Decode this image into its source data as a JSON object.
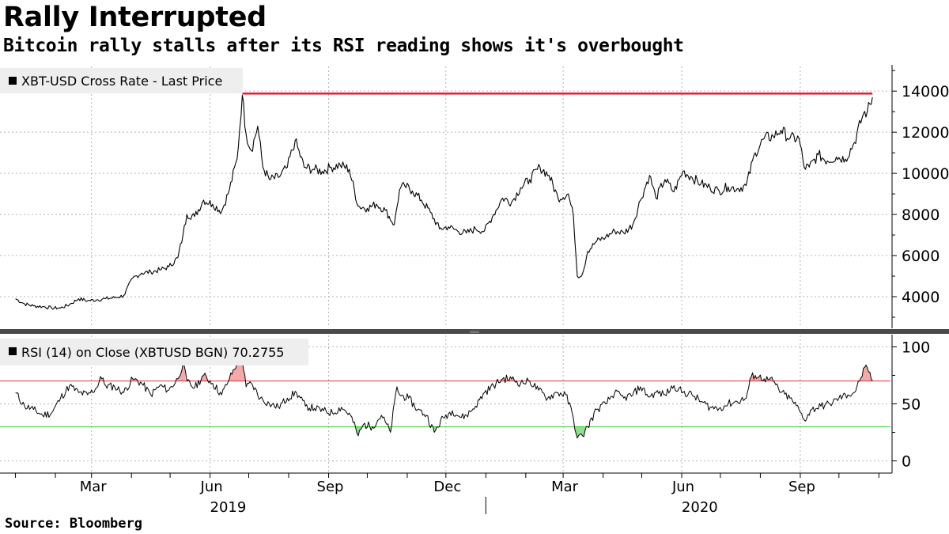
{
  "header": {
    "title": "Rally Interrupted",
    "subtitle": "Bitcoin rally stalls after its RSI reading shows it's overbought",
    "source": "Source:  Bloomberg"
  },
  "colors": {
    "price_line": "#000000",
    "reference_line": "#e8192c",
    "overbought_line": "#e03030",
    "oversold_line": "#33cc33",
    "overbought_fill": "#f2aaaa",
    "oversold_fill": "#8fe08f",
    "grid": "#b4b4b4",
    "legend_bg": "#eeeeee"
  },
  "chart_data": [
    {
      "type": "line",
      "name": "price",
      "legend": "XBT-USD Cross Rate - Last Price",
      "yaxis_position": "right",
      "ylim": [
        2500,
        15200
      ],
      "yticks": [
        4000,
        6000,
        8000,
        10000,
        12000,
        14000
      ],
      "ytick_labels": [
        "4000",
        "6000",
        "8000",
        "10000",
        "12000",
        "14000"
      ],
      "reference_line": {
        "value": 13880,
        "from": "2019-06-26",
        "to": "2020-10-27"
      },
      "series": [
        {
          "name": "XBT-USD Cross Rate - Last Price",
          "x": [
            "2019-01-01",
            "2019-01-08",
            "2019-01-15",
            "2019-01-22",
            "2019-01-29",
            "2019-02-05",
            "2019-02-12",
            "2019-02-19",
            "2019-02-26",
            "2019-03-05",
            "2019-03-12",
            "2019-03-19",
            "2019-03-26",
            "2019-04-02",
            "2019-04-09",
            "2019-04-16",
            "2019-04-23",
            "2019-04-30",
            "2019-05-07",
            "2019-05-11",
            "2019-05-14",
            "2019-05-20",
            "2019-05-27",
            "2019-06-03",
            "2019-06-10",
            "2019-06-16",
            "2019-06-22",
            "2019-06-26",
            "2019-06-29",
            "2019-07-03",
            "2019-07-08",
            "2019-07-12",
            "2019-07-17",
            "2019-07-24",
            "2019-07-31",
            "2019-08-06",
            "2019-08-13",
            "2019-08-20",
            "2019-08-27",
            "2019-09-03",
            "2019-09-10",
            "2019-09-17",
            "2019-09-24",
            "2019-10-01",
            "2019-10-08",
            "2019-10-15",
            "2019-10-22",
            "2019-10-26",
            "2019-10-30",
            "2019-11-05",
            "2019-11-12",
            "2019-11-19",
            "2019-11-26",
            "2019-12-03",
            "2019-12-10",
            "2019-12-17",
            "2019-12-24",
            "2019-12-31",
            "2020-01-07",
            "2020-01-14",
            "2020-01-21",
            "2020-01-28",
            "2020-02-04",
            "2020-02-12",
            "2020-02-19",
            "2020-02-26",
            "2020-03-05",
            "2020-03-09",
            "2020-03-12",
            "2020-03-16",
            "2020-03-20",
            "2020-03-27",
            "2020-04-03",
            "2020-04-10",
            "2020-04-17",
            "2020-04-24",
            "2020-04-30",
            "2020-05-07",
            "2020-05-12",
            "2020-05-19",
            "2020-05-26",
            "2020-06-02",
            "2020-06-09",
            "2020-06-16",
            "2020-06-23",
            "2020-06-30",
            "2020-07-07",
            "2020-07-14",
            "2020-07-21",
            "2020-07-28",
            "2020-08-04",
            "2020-08-11",
            "2020-08-17",
            "2020-08-24",
            "2020-08-31",
            "2020-09-04",
            "2020-09-08",
            "2020-09-15",
            "2020-09-22",
            "2020-09-29",
            "2020-10-06",
            "2020-10-13",
            "2020-10-20",
            "2020-10-23",
            "2020-10-27"
          ],
          "values": [
            3900,
            3650,
            3550,
            3520,
            3450,
            3450,
            3620,
            3900,
            3800,
            3850,
            3900,
            3950,
            4050,
            4900,
            5150,
            5200,
            5300,
            5450,
            5900,
            7000,
            8000,
            7900,
            8700,
            8500,
            8150,
            9200,
            10700,
            13800,
            11900,
            11100,
            12300,
            10300,
            9700,
            9800,
            10300,
            11600,
            10300,
            10200,
            10100,
            10300,
            10400,
            10200,
            8400,
            8300,
            8500,
            8200,
            7500,
            9200,
            9400,
            9150,
            8700,
            8100,
            7300,
            7400,
            7200,
            7100,
            7300,
            7200,
            8000,
            8800,
            8600,
            9300,
            9700,
            10300,
            9900,
            8800,
            9000,
            7900,
            5000,
            5100,
            6200,
            6700,
            6900,
            7200,
            7100,
            7500,
            8700,
            9900,
            8800,
            9700,
            9100,
            10100,
            9800,
            9500,
            9300,
            9150,
            9350,
            9250,
            9400,
            11000,
            11700,
            11800,
            12100,
            11700,
            11700,
            10300,
            10300,
            10900,
            10600,
            10800,
            10700,
            11500,
            12900,
            13000,
            13700
          ]
        }
      ]
    },
    {
      "type": "line",
      "name": "rsi",
      "legend": "RSI (14)  on Close (XBTUSD BGN) 70.2755",
      "yaxis_position": "right",
      "ylim": [
        -10,
        110
      ],
      "yticks": [
        0,
        50,
        100
      ],
      "ytick_labels": [
        "0",
        "50",
        "100"
      ],
      "overbought": 70,
      "oversold": 30,
      "last_value": 70.2755,
      "series": [
        {
          "name": "RSI (14)",
          "x": [
            "2019-01-01",
            "2019-01-08",
            "2019-01-15",
            "2019-01-22",
            "2019-01-29",
            "2019-02-05",
            "2019-02-12",
            "2019-02-19",
            "2019-02-26",
            "2019-03-05",
            "2019-03-08",
            "2019-03-12",
            "2019-03-19",
            "2019-03-26",
            "2019-04-02",
            "2019-04-09",
            "2019-04-16",
            "2019-04-23",
            "2019-04-30",
            "2019-05-07",
            "2019-05-11",
            "2019-05-14",
            "2019-05-20",
            "2019-05-27",
            "2019-06-03",
            "2019-06-10",
            "2019-06-16",
            "2019-06-22",
            "2019-06-26",
            "2019-06-29",
            "2019-07-03",
            "2019-07-10",
            "2019-07-17",
            "2019-07-24",
            "2019-07-31",
            "2019-08-07",
            "2019-08-14",
            "2019-08-21",
            "2019-08-28",
            "2019-09-04",
            "2019-09-11",
            "2019-09-18",
            "2019-09-24",
            "2019-09-28",
            "2019-10-05",
            "2019-10-12",
            "2019-10-19",
            "2019-10-24",
            "2019-10-26",
            "2019-11-02",
            "2019-11-09",
            "2019-11-16",
            "2019-11-22",
            "2019-11-29",
            "2019-12-06",
            "2019-12-13",
            "2019-12-17",
            "2019-12-24",
            "2019-12-31",
            "2020-01-07",
            "2020-01-14",
            "2020-01-21",
            "2020-01-28",
            "2020-02-04",
            "2020-02-11",
            "2020-02-18",
            "2020-02-25",
            "2020-03-03",
            "2020-03-08",
            "2020-03-12",
            "2020-03-16",
            "2020-03-20",
            "2020-03-27",
            "2020-04-03",
            "2020-04-10",
            "2020-04-17",
            "2020-04-24",
            "2020-04-30",
            "2020-05-07",
            "2020-05-12",
            "2020-05-19",
            "2020-05-26",
            "2020-06-02",
            "2020-06-09",
            "2020-06-16",
            "2020-06-23",
            "2020-06-30",
            "2020-07-07",
            "2020-07-14",
            "2020-07-21",
            "2020-07-25",
            "2020-07-28",
            "2020-08-04",
            "2020-08-11",
            "2020-08-17",
            "2020-08-24",
            "2020-08-31",
            "2020-09-04",
            "2020-09-10",
            "2020-09-17",
            "2020-09-24",
            "2020-10-01",
            "2020-10-08",
            "2020-10-13",
            "2020-10-17",
            "2020-10-21",
            "2020-10-24",
            "2020-10-27"
          ],
          "values": [
            60,
            48,
            45,
            40,
            42,
            55,
            66,
            60,
            58,
            64,
            74,
            66,
            65,
            60,
            72,
            68,
            58,
            66,
            62,
            72,
            85,
            70,
            64,
            75,
            68,
            58,
            72,
            86,
            88,
            65,
            68,
            55,
            50,
            47,
            55,
            60,
            48,
            46,
            44,
            42,
            47,
            40,
            22,
            32,
            30,
            40,
            25,
            65,
            58,
            55,
            45,
            40,
            25,
            38,
            44,
            38,
            40,
            48,
            60,
            66,
            72,
            72,
            68,
            70,
            62,
            55,
            60,
            58,
            42,
            20,
            22,
            30,
            45,
            50,
            60,
            55,
            58,
            65,
            56,
            60,
            58,
            66,
            60,
            58,
            52,
            47,
            46,
            50,
            52,
            55,
            74,
            75,
            72,
            70,
            60,
            55,
            45,
            36,
            45,
            48,
            50,
            55,
            58,
            60,
            70,
            82,
            78,
            70.3
          ]
        }
      ]
    }
  ],
  "xaxis": {
    "range": [
      "2018-12-20",
      "2020-11-10"
    ],
    "tick_labels": [
      {
        "label": "Mar",
        "date": "2019-03-01"
      },
      {
        "label": "Jun",
        "date": "2019-06-01"
      },
      {
        "label": "Sep",
        "date": "2019-09-01"
      },
      {
        "label": "Dec",
        "date": "2019-12-01"
      },
      {
        "label": "Mar",
        "date": "2020-03-01"
      },
      {
        "label": "Jun",
        "date": "2020-06-01"
      },
      {
        "label": "Sep",
        "date": "2020-09-01"
      }
    ],
    "years": [
      {
        "label": "2019",
        "date": "2019-06-15"
      },
      {
        "label": "2020",
        "date": "2020-06-15"
      }
    ],
    "year_separator": "2020-01-01"
  }
}
